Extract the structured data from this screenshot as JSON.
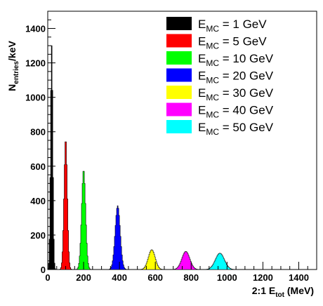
{
  "chart_data": {
    "type": "area",
    "xlabel_main": "2:1 E",
    "xlabel_sub": "tot",
    "xlabel_unit": " (MeV)",
    "ylabel_main": "N",
    "ylabel_sub": "entries",
    "ylabel_unit": "/keV",
    "xlim": [
      0,
      1500
    ],
    "ylim": [
      0,
      1500
    ],
    "xticks": [
      "0",
      "200",
      "400",
      "600",
      "800",
      "1000",
      "1200",
      "1400"
    ],
    "yticks": [
      "0",
      "200",
      "400",
      "600",
      "800",
      "1000",
      "1200",
      "1400"
    ],
    "legend_position": "top-right",
    "series": [
      {
        "label_main": "E",
        "label_sub": "MC",
        "label_rest": " = 1 GeV",
        "color": "#000000",
        "mean": 22,
        "sigma": 6,
        "peak": 1300
      },
      {
        "label_main": "E",
        "label_sub": "MC",
        "label_rest": " = 5 GeV",
        "color": "#ff0000",
        "mean": 100,
        "sigma": 9,
        "peak": 760
      },
      {
        "label_main": "E",
        "label_sub": "MC",
        "label_rest": " = 10 GeV",
        "color": "#00ff00",
        "mean": 200,
        "sigma": 11,
        "peak": 580
      },
      {
        "label_main": "E",
        "label_sub": "MC",
        "label_rest": " = 20 GeV",
        "color": "#0000ff",
        "mean": 390,
        "sigma": 14,
        "peak": 370
      },
      {
        "label_main": "E",
        "label_sub": "MC",
        "label_rest": " = 30 GeV",
        "color": "#ffff00",
        "mean": 580,
        "sigma": 19,
        "peak": 115
      },
      {
        "label_main": "E",
        "label_sub": "MC",
        "label_rest": " = 40 GeV",
        "color": "#ff00ff",
        "mean": 770,
        "sigma": 22,
        "peak": 105
      },
      {
        "label_main": "E",
        "label_sub": "MC",
        "label_rest": " = 50 GeV",
        "color": "#00ffff",
        "mean": 960,
        "sigma": 25,
        "peak": 95
      }
    ]
  }
}
